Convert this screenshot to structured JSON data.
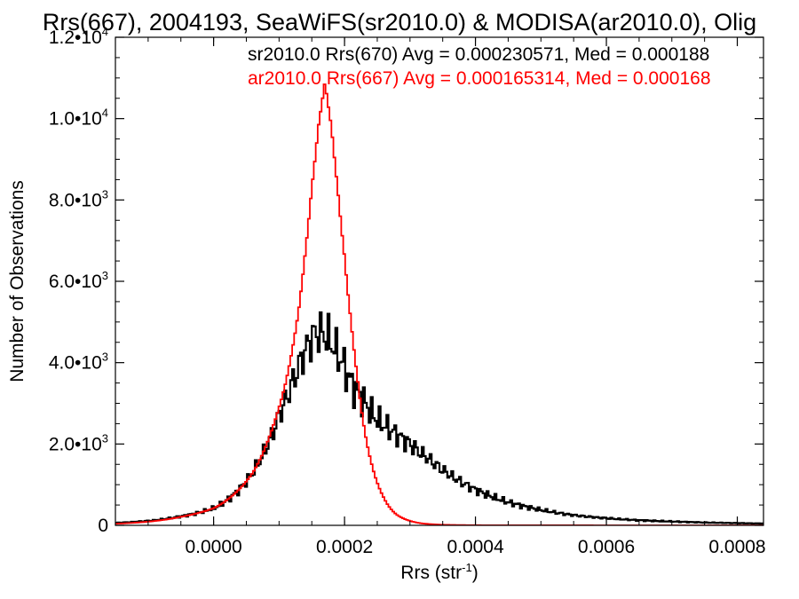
{
  "chart_data": {
    "type": "line",
    "title": "Rrs(667), 2004193, SeaWiFS(sr2010.0) & MODISA(ar2010.0), Olig",
    "xlabel": "Rrs (str",
    "xlabel_sup": "-1",
    "xlabel_tail": ")",
    "ylabel": "Number of Observations",
    "xlim": [
      -0.00015,
      0.00084
    ],
    "ylim": [
      0,
      12000
    ],
    "x_ticks": [
      0.0,
      0.0002,
      0.0004,
      0.0006,
      0.0008
    ],
    "x_tick_labels": [
      "0.0000",
      "0.0002",
      "0.0004",
      "0.0006",
      "0.0008"
    ],
    "y_ticks": [
      0,
      2000,
      4000,
      6000,
      8000,
      10000,
      12000
    ],
    "y_tick_labels": [
      {
        "mant": "0",
        "exp": ""
      },
      {
        "mant": "2.0•10",
        "exp": "3"
      },
      {
        "mant": "4.0•10",
        "exp": "3"
      },
      {
        "mant": "6.0•10",
        "exp": "3"
      },
      {
        "mant": "8.0•10",
        "exp": "3"
      },
      {
        "mant": "1.0•10",
        "exp": "4"
      },
      {
        "mant": "1.2•10",
        "exp": "4"
      }
    ],
    "grid": false,
    "legend_position": "top-right",
    "series": [
      {
        "name": "sr2010.0 Rrs(670) Avg = 0.000230571, Med = 0.000188",
        "color": "#000000",
        "style": "histogram",
        "points": [
          [
            -0.00015,
            60
          ],
          [
            -0.0001,
            110
          ],
          [
            -5e-05,
            220
          ],
          [
            0.0,
            420
          ],
          [
            4e-05,
            900
          ],
          [
            8e-05,
            1900
          ],
          [
            0.0001,
            2700
          ],
          [
            0.00012,
            3500
          ],
          [
            0.00013,
            3900
          ],
          [
            0.00014,
            4300
          ],
          [
            0.00015,
            4600
          ],
          [
            0.00016,
            4750
          ],
          [
            0.00017,
            4700
          ],
          [
            0.00018,
            4500
          ],
          [
            0.00019,
            4200
          ],
          [
            0.0002,
            3900
          ],
          [
            0.00021,
            3500
          ],
          [
            0.00022,
            3250
          ],
          [
            0.00023,
            3050
          ],
          [
            0.00024,
            2800
          ],
          [
            0.00025,
            2600
          ],
          [
            0.00027,
            2350
          ],
          [
            0.0003,
            2000
          ],
          [
            0.00033,
            1620
          ],
          [
            0.00036,
            1250
          ],
          [
            0.0004,
            880
          ],
          [
            0.00045,
            570
          ],
          [
            0.0005,
            380
          ],
          [
            0.00055,
            250
          ],
          [
            0.0006,
            175
          ],
          [
            0.00065,
            125
          ],
          [
            0.0007,
            95
          ],
          [
            0.00075,
            70
          ],
          [
            0.0008,
            55
          ],
          [
            0.00084,
            45
          ]
        ]
      },
      {
        "name": "ar2010.0 Rrs(667) Avg = 0.000165314, Med = 0.000168",
        "color": "#ff0000",
        "style": "histogram",
        "points": [
          [
            -0.00015,
            40
          ],
          [
            -0.0001,
            90
          ],
          [
            -5e-05,
            210
          ],
          [
            0.0,
            420
          ],
          [
            3e-05,
            750
          ],
          [
            6e-05,
            1300
          ],
          [
            9e-05,
            2400
          ],
          [
            0.00011,
            3500
          ],
          [
            0.00012,
            4300
          ],
          [
            0.00013,
            5300
          ],
          [
            0.00014,
            6700
          ],
          [
            0.00015,
            8300
          ],
          [
            0.00016,
            9800
          ],
          [
            0.00017,
            10900
          ],
          [
            0.00018,
            9800
          ],
          [
            0.00019,
            8200
          ],
          [
            0.0002,
            6600
          ],
          [
            0.00021,
            5000
          ],
          [
            0.00022,
            3600
          ],
          [
            0.00023,
            2400
          ],
          [
            0.00024,
            1600
          ],
          [
            0.00025,
            1050
          ],
          [
            0.00026,
            680
          ],
          [
            0.00027,
            420
          ],
          [
            0.00028,
            260
          ],
          [
            0.0003,
            110
          ],
          [
            0.00032,
            45
          ],
          [
            0.00035,
            15
          ],
          [
            0.0004,
            4
          ],
          [
            0.0005,
            1
          ],
          [
            0.00084,
            0
          ]
        ]
      }
    ]
  }
}
